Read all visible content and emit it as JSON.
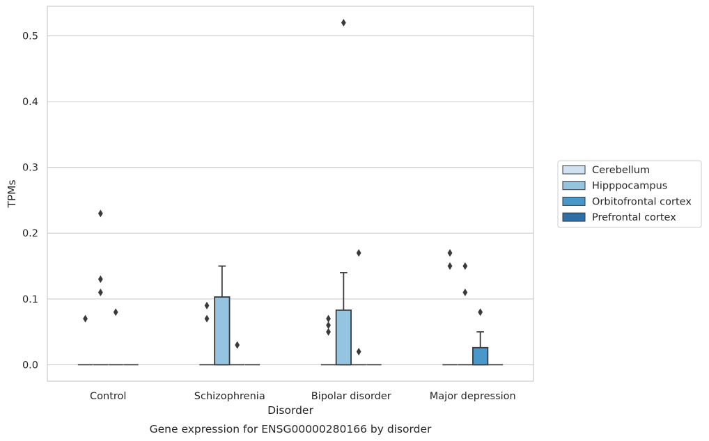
{
  "chart_data": {
    "type": "boxplot",
    "title": "Gene expression for ENSG00000280166 by disorder",
    "xlabel": "Disorder",
    "ylabel": "TPMs",
    "ylim": [
      -0.025,
      0.545
    ],
    "yticks": [
      "0.0",
      "0.1",
      "0.2",
      "0.3",
      "0.4",
      "0.5"
    ],
    "ytick_values": [
      0.0,
      0.1,
      0.2,
      0.3,
      0.4,
      0.5
    ],
    "grid": true,
    "legend_position": "right",
    "categories": [
      "Control",
      "Schizophrenia",
      "Bipolar disorder",
      "Major depression"
    ],
    "series": [
      {
        "name": "Cerebellum",
        "color": "#d0e1f2",
        "boxes": [
          {
            "q1": 0,
            "median": 0,
            "q3": 0,
            "whisker_low": 0,
            "whisker_high": 0,
            "outliers": [
              0.07
            ]
          },
          {
            "q1": 0,
            "median": 0,
            "q3": 0,
            "whisker_low": 0,
            "whisker_high": 0,
            "outliers": [
              0.07,
              0.09
            ]
          },
          {
            "q1": 0,
            "median": 0,
            "q3": 0,
            "whisker_low": 0,
            "whisker_high": 0,
            "outliers": [
              0.05,
              0.06,
              0.07
            ]
          },
          {
            "q1": 0,
            "median": 0,
            "q3": 0,
            "whisker_low": 0,
            "whisker_high": 0,
            "outliers": [
              0.15,
              0.17
            ]
          }
        ]
      },
      {
        "name": "Hipppocampus",
        "color": "#94c4df",
        "boxes": [
          {
            "q1": 0,
            "median": 0,
            "q3": 0,
            "whisker_low": 0,
            "whisker_high": 0,
            "outliers": [
              0.11,
              0.13,
              0.23
            ]
          },
          {
            "q1": 0,
            "median": 0,
            "q3": 0.103,
            "whisker_low": 0,
            "whisker_high": 0.15,
            "outliers": []
          },
          {
            "q1": 0,
            "median": 0,
            "q3": 0.083,
            "whisker_low": 0,
            "whisker_high": 0.14,
            "outliers": [
              0.52
            ]
          },
          {
            "q1": 0,
            "median": 0,
            "q3": 0,
            "whisker_low": 0,
            "whisker_high": 0,
            "outliers": [
              0.11,
              0.15
            ]
          }
        ]
      },
      {
        "name": "Orbitofrontal cortex",
        "color": "#4a98c9",
        "boxes": [
          {
            "q1": 0,
            "median": 0,
            "q3": 0,
            "whisker_low": 0,
            "whisker_high": 0,
            "outliers": [
              0.08
            ]
          },
          {
            "q1": 0,
            "median": 0,
            "q3": 0,
            "whisker_low": 0,
            "whisker_high": 0,
            "outliers": [
              0.03
            ]
          },
          {
            "q1": 0,
            "median": 0,
            "q3": 0,
            "whisker_low": 0,
            "whisker_high": 0,
            "outliers": [
              0.02,
              0.17
            ]
          },
          {
            "q1": 0,
            "median": 0,
            "q3": 0.026,
            "whisker_low": 0,
            "whisker_high": 0.05,
            "outliers": [
              0.08
            ]
          }
        ]
      },
      {
        "name": "Prefrontal cortex",
        "color": "#2e6ea6",
        "boxes": [
          {
            "q1": 0,
            "median": 0,
            "q3": 0,
            "whisker_low": 0,
            "whisker_high": 0,
            "outliers": []
          },
          {
            "q1": 0,
            "median": 0,
            "q3": 0,
            "whisker_low": 0,
            "whisker_high": 0,
            "outliers": []
          },
          {
            "q1": 0,
            "median": 0,
            "q3": 0,
            "whisker_low": 0,
            "whisker_high": 0,
            "outliers": []
          },
          {
            "q1": 0,
            "median": 0,
            "q3": 0,
            "whisker_low": 0,
            "whisker_high": 0,
            "outliers": []
          }
        ]
      }
    ]
  }
}
